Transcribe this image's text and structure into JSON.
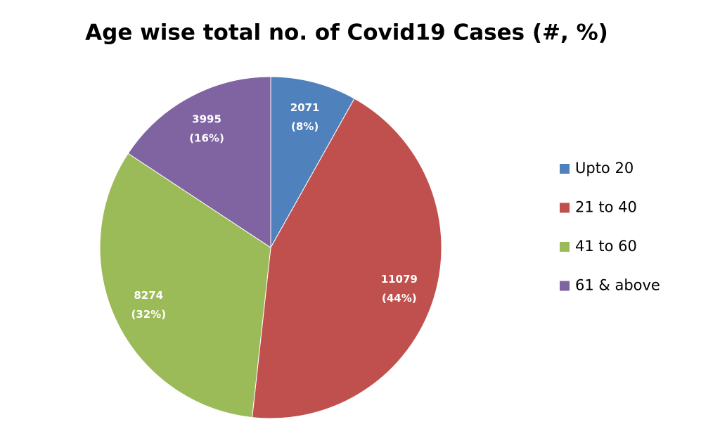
{
  "chart_data": {
    "type": "pie",
    "title": "Age wise total no. of Covid19 Cases (#, %)",
    "categories": [
      "Upto 20",
      "21 to 40",
      "41 to 60",
      "61 & above"
    ],
    "values": [
      2071,
      11079,
      8274,
      3995
    ],
    "percent_labels": [
      "(8%)",
      "(44%)",
      "(32%)",
      "(16%)"
    ],
    "colors": [
      "#4f81bd",
      "#c0504d",
      "#9bbb59",
      "#8064a2"
    ],
    "legend": "right"
  }
}
